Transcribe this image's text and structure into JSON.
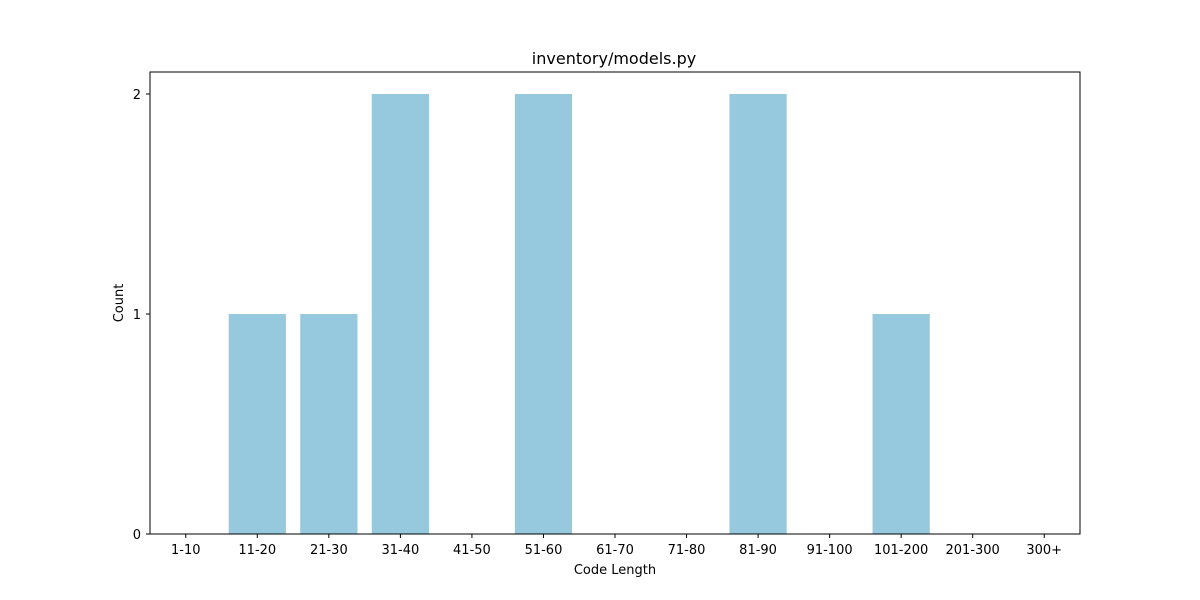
{
  "chart_data": {
    "type": "bar",
    "title": "inventory/models.py",
    "xlabel": "Code Length",
    "ylabel": "Count",
    "categories": [
      "1-10",
      "11-20",
      "21-30",
      "31-40",
      "41-50",
      "51-60",
      "61-70",
      "71-80",
      "81-90",
      "91-100",
      "101-200",
      "201-300",
      "300+"
    ],
    "values": [
      0,
      1,
      1,
      2,
      0,
      2,
      0,
      0,
      2,
      0,
      1,
      0,
      0
    ],
    "ylim": [
      0,
      2.1
    ],
    "yticks": [
      "0",
      "1",
      "2"
    ],
    "grid": false,
    "bar_color": "#96c9de"
  }
}
